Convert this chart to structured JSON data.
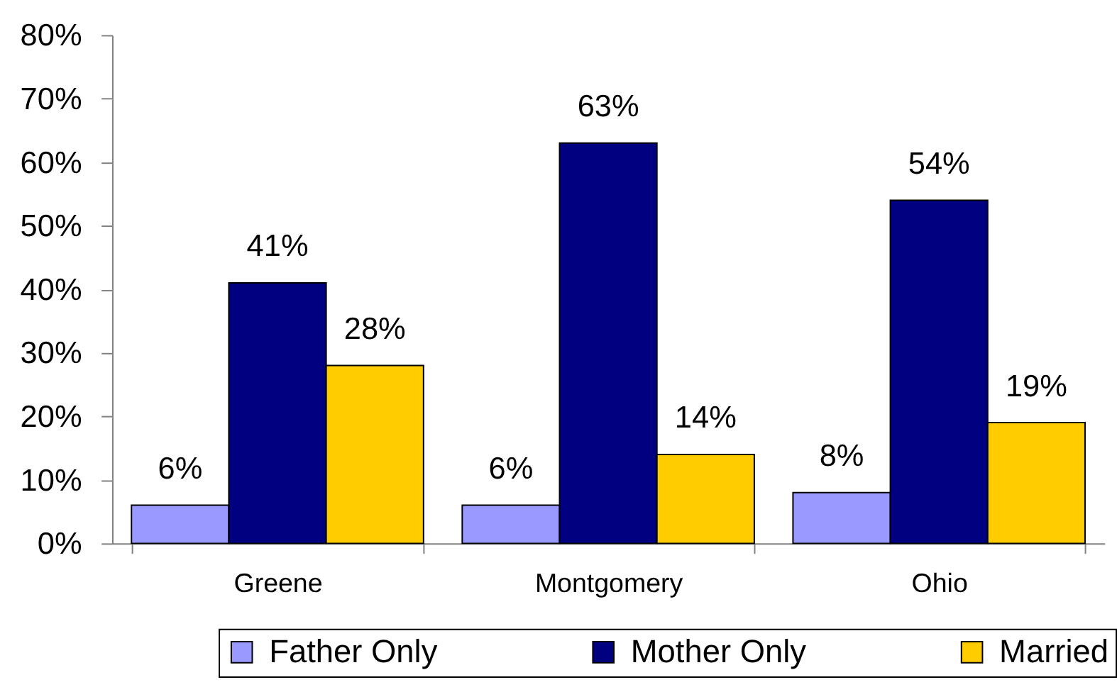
{
  "chart_data": {
    "type": "bar",
    "categories": [
      "Greene",
      "Montgomery",
      "Ohio"
    ],
    "series": [
      {
        "name": "Father Only",
        "color": "#9999ff",
        "values": [
          6,
          6,
          8
        ],
        "value_labels": [
          "6%",
          "6%",
          "8%"
        ]
      },
      {
        "name": "Mother Only",
        "color": "#000080",
        "values": [
          41,
          63,
          54
        ],
        "value_labels": [
          "41%",
          "63%",
          "54%"
        ]
      },
      {
        "name": "Married",
        "color": "#ffcc00",
        "values": [
          28,
          14,
          19
        ],
        "value_labels": [
          "28%",
          "14%",
          "19%"
        ]
      }
    ],
    "ylim": [
      0,
      80
    ],
    "yticks": [
      {
        "value": 0,
        "label": "0%"
      },
      {
        "value": 10,
        "label": "10%"
      },
      {
        "value": 20,
        "label": "20%"
      },
      {
        "value": 30,
        "label": "30%"
      },
      {
        "value": 40,
        "label": "40%"
      },
      {
        "value": 50,
        "label": "50%"
      },
      {
        "value": 60,
        "label": "60%"
      },
      {
        "value": 70,
        "label": "70%"
      },
      {
        "value": 80,
        "label": "80%"
      }
    ],
    "grid": false,
    "legend": "bottom"
  }
}
